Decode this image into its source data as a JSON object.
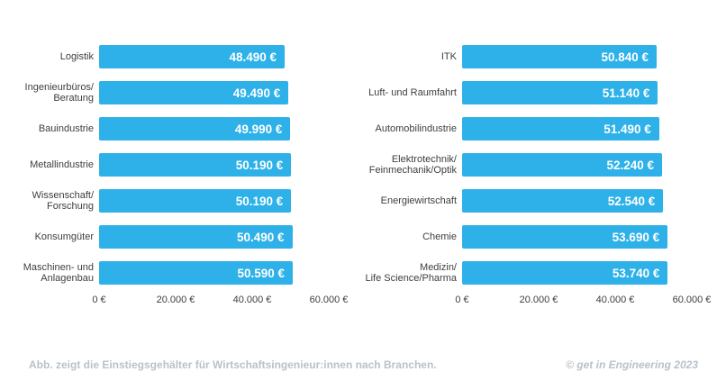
{
  "figure": {
    "background": "#ffffff",
    "bar_color": "#2db1e8",
    "label_color": "#3e3e3e",
    "value_label_color": "#ffffff",
    "footer_color": "#b9c1ca"
  },
  "chart_data": [
    {
      "type": "bar",
      "orientation": "horizontal",
      "title": "",
      "categories": [
        "Logistik",
        "Ingenieurbüros/\nBeratung",
        "Bauindustrie",
        "Metallindustrie",
        "Wissenschaft/\nForschung",
        "Konsumgüter",
        "Maschinen- und\nAnlagenbau"
      ],
      "values": [
        48490,
        49490,
        49990,
        50190,
        50190,
        50490,
        50590
      ],
      "value_labels": [
        "48.490 €",
        "49.490 €",
        "49.990 €",
        "50.190 €",
        "50.190 €",
        "50.490 €",
        "50.590 €"
      ],
      "xlim": [
        0,
        60000
      ],
      "xtick_values": [
        0,
        20000,
        40000,
        60000
      ],
      "xtick_labels": [
        "0 €",
        "20.000 €",
        "40.000 €",
        "60.000 €"
      ],
      "grid": "off",
      "legend": "none"
    },
    {
      "type": "bar",
      "orientation": "horizontal",
      "title": "",
      "categories": [
        "ITK",
        "Luft- und Raumfahrt",
        "Automobilindustrie",
        "Elektrotechnik/\nFeinmechanik/Optik",
        "Energiewirtschaft",
        "Chemie",
        "Medizin/\nLife Science/Pharma"
      ],
      "values": [
        50840,
        51140,
        51490,
        52240,
        52540,
        53690,
        53740
      ],
      "value_labels": [
        "50.840 €",
        "51.140 €",
        "51.490 €",
        "52.240 €",
        "52.540 €",
        "53.690 €",
        "53.740 €"
      ],
      "xlim": [
        0,
        60000
      ],
      "xtick_values": [
        0,
        20000,
        40000,
        60000
      ],
      "xtick_labels": [
        "0 €",
        "20.000 €",
        "40.000 €",
        "60.000 €"
      ],
      "grid": "off",
      "legend": "none"
    }
  ],
  "footer": {
    "caption": "Abb. zeigt die Einstiegsgehälter für Wirtschaftsingenieur:innen nach Branchen.",
    "credit": "© get in Engineering 2023"
  }
}
